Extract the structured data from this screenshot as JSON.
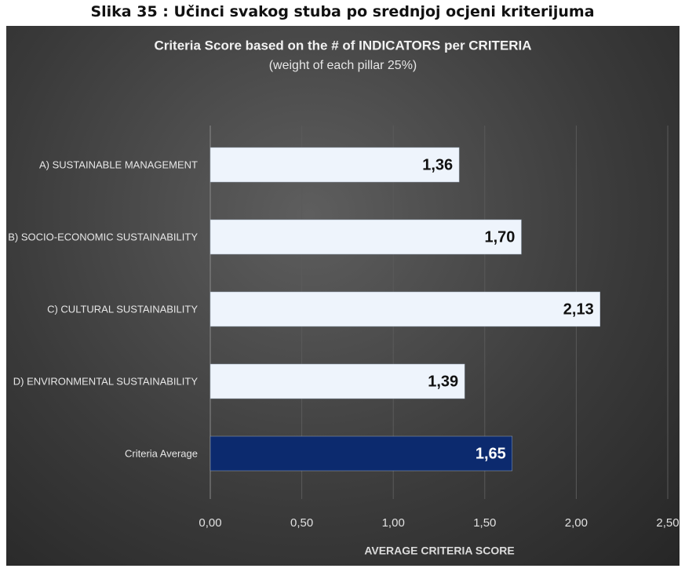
{
  "caption": "Slika 35 : Učinci svakog stuba po srednjoj ocjeni kriterijuma",
  "chart_data": {
    "type": "barh",
    "title": "Criteria Score based on the # of INDICATORS per CRITERIA",
    "subtitle": "(weight of each pillar 25%)",
    "xlabel": "AVERAGE CRITERIA SCORE",
    "categories": [
      "A) SUSTAINABLE MANAGEMENT",
      "B) SOCIO-ECONOMIC SUSTAINABILITY",
      "C) CULTURAL SUSTAINABILITY",
      "D) ENVIRONMENTAL SUSTAINABILITY",
      "Criteria Average"
    ],
    "values": [
      1.36,
      1.7,
      2.13,
      1.39,
      1.65
    ],
    "value_labels": [
      "1,36",
      "1,70",
      "2,13",
      "1,39",
      "1,65"
    ],
    "colors": [
      "#eef4fc",
      "#eef4fc",
      "#eef4fc",
      "#eef4fc",
      "#0c2a6e"
    ],
    "xlim": [
      0,
      2.5
    ],
    "xticks": [
      {
        "value": 0,
        "label": "0,00"
      },
      {
        "value": 0.5,
        "label": "0,50"
      },
      {
        "value": 1,
        "label": "1,00"
      },
      {
        "value": 1.5,
        "label": "1,50"
      },
      {
        "value": 2,
        "label": "2,00"
      },
      {
        "value": 2.5,
        "label": "2,50"
      }
    ],
    "grid": true
  }
}
